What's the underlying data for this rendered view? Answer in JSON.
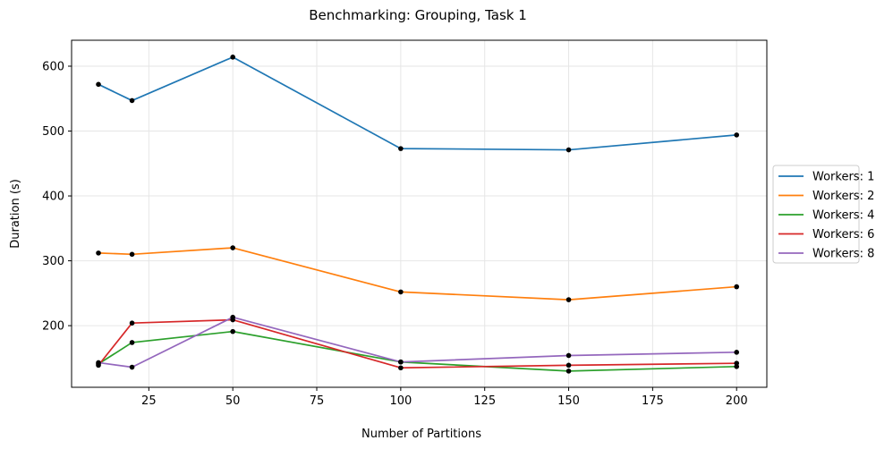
{
  "chart_data": {
    "type": "line",
    "title": "Benchmarking: Grouping, Task 1",
    "xlabel": "Number of Partitions",
    "ylabel": "Duration (s)",
    "x": [
      10,
      20,
      50,
      100,
      150,
      200
    ],
    "xlim": [
      2,
      209
    ],
    "ylim": [
      105,
      640
    ],
    "xticks": [
      25,
      50,
      75,
      100,
      125,
      150,
      175,
      200
    ],
    "yticks": [
      200,
      300,
      400,
      500,
      600
    ],
    "grid": true,
    "legend_position": "center-right-outside",
    "marker_color": "#000000",
    "series": [
      {
        "name": "Workers: 1",
        "color": "#1f77b4",
        "values": [
          572,
          547,
          614,
          473,
          471,
          494
        ]
      },
      {
        "name": "Workers: 2",
        "color": "#ff7f0e",
        "values": [
          312,
          310,
          320,
          252,
          240,
          260
        ]
      },
      {
        "name": "Workers: 4",
        "color": "#2ca02c",
        "values": [
          141,
          174,
          191,
          144,
          130,
          137
        ]
      },
      {
        "name": "Workers: 6",
        "color": "#d62728",
        "values": [
          139,
          204,
          209,
          135,
          139,
          142
        ]
      },
      {
        "name": "Workers: 8",
        "color": "#9467bd",
        "values": [
          143,
          136,
          213,
          144,
          154,
          159
        ]
      }
    ]
  }
}
